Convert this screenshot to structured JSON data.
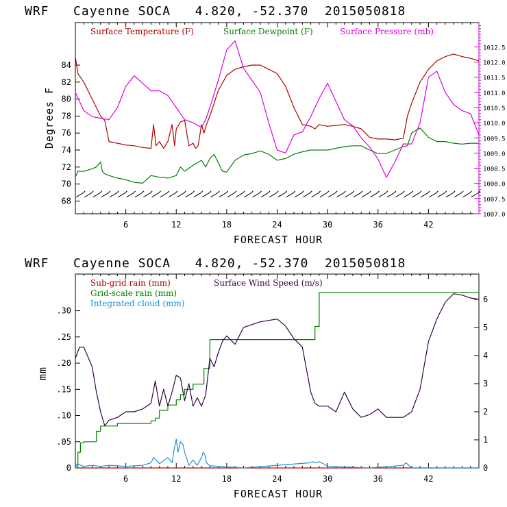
{
  "chart_data": [
    {
      "type": "line",
      "title": "WRF   Cayenne SOCA   4.820, -52.370  2015050818",
      "xlabel": "FORECAST HOUR",
      "ylabel": "Degrees F",
      "xlim": [
        0,
        48
      ],
      "xticks": [
        6,
        12,
        18,
        24,
        30,
        36,
        42
      ],
      "y_left": {
        "lim": [
          66.5,
          89
        ],
        "ticks": [
          68,
          70,
          72,
          74,
          76,
          78,
          80,
          82,
          84
        ]
      },
      "y_right": {
        "lim": [
          1007.0,
          1013.3
        ],
        "ticks": [
          1007.0,
          1007.5,
          1008.0,
          1008.5,
          1009.0,
          1009.5,
          1010.0,
          1010.5,
          1011.0,
          1011.5,
          1012.0,
          1012.5
        ],
        "tick_labels": [
          "1007.0",
          "1007.5",
          "1008.0",
          "1008.5",
          "1009.0",
          "1009.5",
          "1010.0",
          "1010.5",
          "1011.0",
          "1011.5",
          "1012.0",
          "1012.5"
        ],
        "color": "#cc00cc"
      },
      "wind_barbs": {
        "y_value": 68.7,
        "count": 48
      },
      "series": [
        {
          "name": "Surface Temperature (F)",
          "color": "#b00000",
          "axis": "left",
          "x": [
            0,
            0.3,
            1,
            2,
            3,
            3.5,
            4,
            5,
            6,
            7,
            8,
            9,
            9.3,
            9.6,
            10,
            10.5,
            11,
            11.5,
            11.8,
            12,
            12.5,
            13,
            13.5,
            14,
            14.3,
            14.6,
            15,
            15.3,
            15.6,
            16,
            17,
            18,
            19,
            20,
            21,
            22,
            23,
            24,
            25,
            26,
            27,
            28,
            28.5,
            29,
            30,
            31,
            32,
            33,
            34,
            35,
            36,
            37,
            38,
            39,
            39.5,
            40,
            41,
            42,
            43,
            44,
            45,
            46,
            47,
            48
          ],
          "y": [
            85,
            83,
            82,
            80,
            78,
            77.5,
            75,
            74.8,
            74.6,
            74.5,
            74.3,
            74.2,
            77,
            74.5,
            75,
            74.2,
            75,
            77,
            74.5,
            76.5,
            77.3,
            77.5,
            74.5,
            74.8,
            74.2,
            74.5,
            77,
            76,
            77,
            78,
            81,
            82.8,
            83.5,
            83.8,
            84,
            84,
            83.5,
            83,
            81.5,
            79,
            77,
            76.8,
            76.5,
            77,
            76.8,
            76.9,
            77,
            76.8,
            76.5,
            75.5,
            75.3,
            75.3,
            75.2,
            75.4,
            78,
            79.5,
            82,
            83.5,
            84.5,
            85,
            85.3,
            85,
            84.8,
            84.5
          ]
        },
        {
          "name": "Surface Dewpoint (F)",
          "color": "#008000",
          "axis": "left",
          "x": [
            0,
            0.3,
            1,
            2,
            2.5,
            3,
            3.2,
            3.5,
            4,
            5,
            6,
            7,
            8,
            9,
            10,
            11,
            12,
            12.5,
            13,
            14,
            15,
            15.5,
            16,
            16.5,
            17,
            17.5,
            18,
            19,
            20,
            21,
            22,
            23,
            24,
            25,
            26,
            27,
            28,
            29,
            30,
            31,
            32,
            33,
            34,
            35,
            36,
            37,
            38,
            39,
            39.5,
            40,
            41,
            42,
            43,
            44,
            45,
            46,
            47,
            48
          ],
          "y": [
            70.8,
            71.5,
            71.5,
            71.8,
            72,
            72.6,
            71.5,
            71.2,
            71,
            70.7,
            70.5,
            70.2,
            70.1,
            71,
            70.8,
            70.7,
            71,
            72,
            71.5,
            72.2,
            72.8,
            72,
            73,
            73.5,
            72.5,
            71.5,
            71.4,
            72.8,
            73.4,
            73.6,
            73.9,
            73.5,
            72.8,
            73,
            73.5,
            73.8,
            74,
            74,
            74,
            74.2,
            74.4,
            74.5,
            74.5,
            74,
            73.6,
            73.6,
            74,
            74.4,
            74.5,
            76,
            76.6,
            75.5,
            75,
            75,
            74.8,
            74.7,
            74.8,
            74.8
          ]
        },
        {
          "name": "Surface Pressure (mb)",
          "color": "#dd00dd",
          "axis": "right",
          "x": [
            0,
            1,
            2,
            3,
            4,
            5,
            6,
            7,
            8,
            9,
            10,
            11,
            12,
            13,
            14,
            15,
            15.5,
            16,
            17,
            18,
            19,
            20,
            21,
            22,
            23,
            24,
            25,
            26,
            27,
            28,
            29,
            30,
            31,
            32,
            33,
            34,
            35,
            36,
            37,
            38,
            39,
            40,
            41,
            42,
            43,
            44,
            45,
            46,
            47,
            48
          ],
          "y": [
            1011.0,
            1010.4,
            1010.2,
            1010.15,
            1010.1,
            1010.5,
            1011.2,
            1011.55,
            1011.3,
            1011.05,
            1011.05,
            1010.9,
            1010.5,
            1010.1,
            1010.0,
            1009.85,
            1010.1,
            1010.5,
            1011.4,
            1012.4,
            1012.7,
            1011.8,
            1011.4,
            1011.0,
            1010.0,
            1009.1,
            1009.0,
            1009.6,
            1009.7,
            1010.2,
            1010.8,
            1011.3,
            1010.7,
            1010.1,
            1009.9,
            1009.5,
            1009.2,
            1008.8,
            1008.2,
            1008.7,
            1009.3,
            1009.3,
            1010.0,
            1011.5,
            1011.7,
            1011.0,
            1010.6,
            1010.4,
            1010.3,
            1009.6
          ]
        }
      ]
    },
    {
      "type": "line",
      "title": "WRF   Cayenne SOCA   4.820, -52.370  2015050818",
      "xlabel": "FORECAST HOUR",
      "ylabel": "mm",
      "xlim": [
        0,
        48
      ],
      "xticks": [
        6,
        12,
        18,
        24,
        30,
        36,
        42
      ],
      "y_left": {
        "lim": [
          0,
          0.37
        ],
        "ticks": [
          0,
          0.05,
          0.1,
          0.15,
          0.2,
          0.25,
          0.3
        ],
        "tick_labels": [
          "0",
          ".05",
          ".10",
          ".15",
          ".20",
          ".25",
          ".30"
        ]
      },
      "y_right": {
        "lim": [
          0,
          6.9
        ],
        "ticks": [
          0,
          1,
          2,
          3,
          4,
          5,
          6
        ],
        "tick_labels": [
          "0",
          "1",
          "2",
          "3",
          "4",
          "5",
          "6"
        ],
        "color": "#000000"
      },
      "series": [
        {
          "name": "Sub-grid rain (mm)",
          "color": "#b00000",
          "axis": "left",
          "x": [
            0,
            48
          ],
          "y": [
            0,
            0
          ]
        },
        {
          "name": "Grid-scale rain (mm)",
          "color": "#008000",
          "axis": "left",
          "step": true,
          "x": [
            0,
            0.3,
            0.6,
            1,
            2,
            2.5,
            3,
            4,
            5,
            6,
            7,
            8,
            9,
            9.5,
            10,
            11,
            12,
            12.5,
            13,
            14,
            15,
            15.3,
            16,
            28,
            28.5,
            29,
            48
          ],
          "y": [
            0,
            0.03,
            0.048,
            0.05,
            0.05,
            0.07,
            0.08,
            0.08,
            0.085,
            0.085,
            0.085,
            0.085,
            0.09,
            0.095,
            0.11,
            0.12,
            0.13,
            0.14,
            0.15,
            0.16,
            0.16,
            0.19,
            0.245,
            0.245,
            0.27,
            0.335,
            0.335
          ]
        },
        {
          "name": "Integrated cloud (mm)",
          "color": "#1e8fd6",
          "axis": "left",
          "x": [
            0,
            0.2,
            1,
            2,
            3,
            4,
            5,
            6,
            7,
            8,
            9,
            9.3,
            9.6,
            10,
            11,
            11.5,
            11.8,
            12,
            12.2,
            12.5,
            12.8,
            13,
            13.5,
            14,
            14.5,
            15,
            15.2,
            15.4,
            15.6,
            16,
            20,
            28,
            28.2,
            28.5,
            29,
            29.5,
            30,
            35,
            39,
            39.3,
            39.6,
            40,
            48
          ],
          "y": [
            0,
            0.008,
            0.003,
            0.005,
            0.003,
            0.005,
            0.004,
            0.003,
            0.004,
            0.005,
            0.01,
            0.02,
            0.015,
            0.008,
            0.02,
            0.01,
            0.04,
            0.055,
            0.03,
            0.05,
            0.045,
            0.03,
            0.005,
            0.015,
            0.005,
            0.02,
            0.03,
            0.025,
            0.01,
            0.004,
            0.0,
            0.01,
            0.012,
            0.01,
            0.012,
            0.008,
            0.003,
            0.0,
            0.005,
            0.01,
            0.006,
            0.0,
            0.0
          ]
        },
        {
          "name": "Surface Wind Speed (m/s)",
          "color": "#330044",
          "axis": "right",
          "x": [
            0,
            0.5,
            1,
            2,
            2.5,
            3,
            3.5,
            4,
            5,
            6,
            7,
            8,
            9,
            9.5,
            10,
            10.5,
            11,
            11.5,
            12,
            12.5,
            13,
            13.5,
            14,
            14.5,
            15,
            15.5,
            16,
            16.5,
            17,
            17.5,
            18,
            19,
            20,
            21,
            22,
            23,
            24,
            25,
            26,
            27,
            27.5,
            28,
            28.5,
            29,
            30,
            31,
            32,
            33,
            34,
            35,
            36,
            37,
            38,
            39,
            40,
            41,
            42,
            43,
            44,
            45,
            46,
            47,
            48
          ],
          "y": [
            3.9,
            4.3,
            4.3,
            3.6,
            2.7,
            2.0,
            1.5,
            1.7,
            1.8,
            2.0,
            2.0,
            2.1,
            2.3,
            3.1,
            2.2,
            2.8,
            2.2,
            2.7,
            3.3,
            3.2,
            2.4,
            3.0,
            2.2,
            2.5,
            2.2,
            2.6,
            3.9,
            3.6,
            4.1,
            4.5,
            4.7,
            4.4,
            5.0,
            5.1,
            5.2,
            5.25,
            5.3,
            5.05,
            4.6,
            4.3,
            3.5,
            2.7,
            2.3,
            2.2,
            2.2,
            2.0,
            2.7,
            2.1,
            1.8,
            1.9,
            2.1,
            1.8,
            1.8,
            1.8,
            2.0,
            2.8,
            4.5,
            5.3,
            5.9,
            6.2,
            6.15,
            6.05,
            6.0
          ]
        }
      ]
    }
  ]
}
